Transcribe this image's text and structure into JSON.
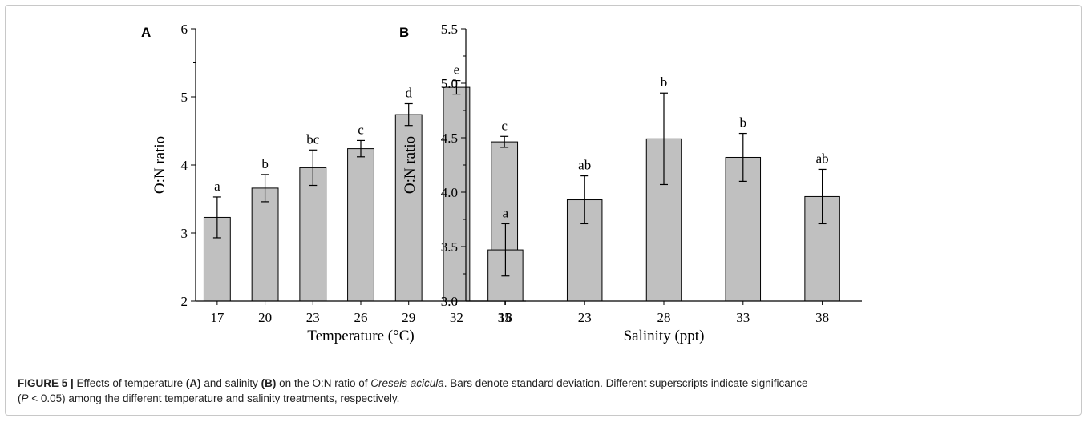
{
  "chart_data": [
    {
      "type": "bar",
      "panel_label": "A",
      "categories": [
        "17",
        "20",
        "23",
        "26",
        "29",
        "32",
        "35"
      ],
      "values": [
        3.23,
        3.66,
        3.96,
        4.24,
        4.74,
        5.14,
        4.34
      ],
      "errors": [
        0.3,
        0.2,
        0.26,
        0.12,
        0.16,
        0.1,
        0.08
      ],
      "significance": [
        "a",
        "b",
        "bc",
        "c",
        "d",
        "e",
        "c"
      ],
      "xlabel": "Temperature (°C)",
      "ylabel": "O:N ratio",
      "ylim": [
        2,
        6
      ],
      "yticks": [
        "2",
        "3",
        "4",
        "5",
        "6"
      ],
      "bar_color": "#c0c0c0",
      "grid": false
    },
    {
      "type": "bar",
      "panel_label": "B",
      "categories": [
        "18",
        "23",
        "28",
        "33",
        "38"
      ],
      "values": [
        3.47,
        3.93,
        4.49,
        4.32,
        3.96
      ],
      "errors": [
        0.24,
        0.22,
        0.42,
        0.22,
        0.25
      ],
      "significance": [
        "a",
        "ab",
        "b",
        "b",
        "ab"
      ],
      "xlabel": "Salinity (ppt)",
      "ylabel": "O:N ratio",
      "ylim": [
        3.0,
        5.5
      ],
      "yticks": [
        "3.0",
        "3.5",
        "4.0",
        "4.5",
        "5.0",
        "5.5"
      ],
      "bar_color": "#c0c0c0",
      "grid": false
    }
  ],
  "caption": {
    "label": "FIGURE 5 |",
    "t1": " Effects of temperature ",
    "a": "(A)",
    "t2": " and salinity ",
    "b": "(B)",
    "t3": " on the O:N ratio of ",
    "species": "Creseis acicula",
    "t4": ". Bars denote standard deviation. Different superscripts indicate significance",
    "t5": "(",
    "p": "P",
    "t6": " < 0.05) among the different temperature and salinity treatments, respectively."
  }
}
